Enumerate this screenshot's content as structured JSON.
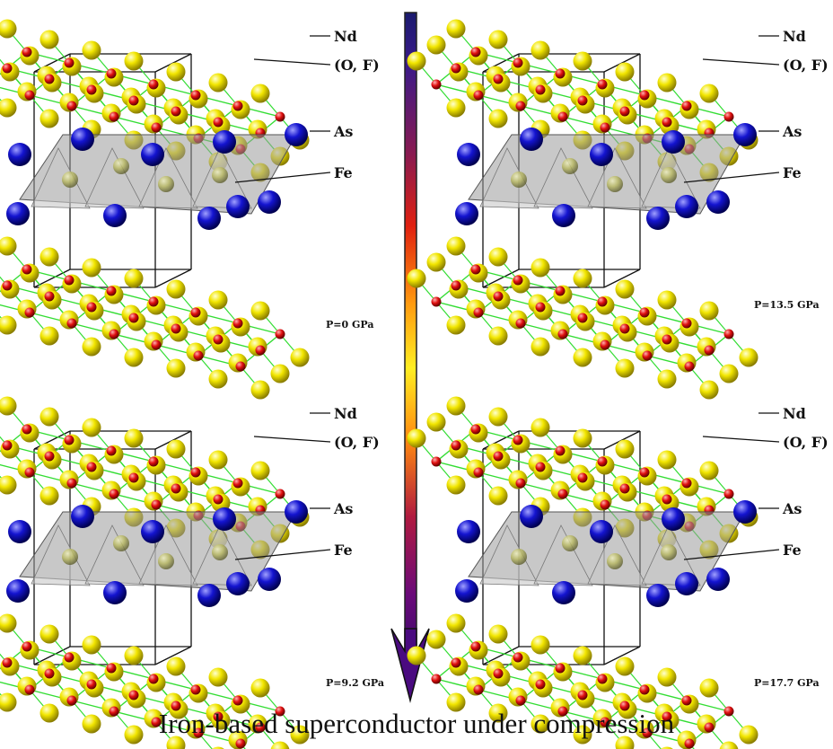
{
  "caption": "Iron-based superconductor under compression",
  "panels": [
    {
      "id": "p0",
      "pressure": "P=0 GPa"
    },
    {
      "id": "p135",
      "pressure": "P=13.5 GPa"
    },
    {
      "id": "p92",
      "pressure": "P=9.2 GPa"
    },
    {
      "id": "p177",
      "pressure": "P=17.7 GPa"
    }
  ],
  "labels": {
    "nd": "Nd",
    "of": "(O, F)",
    "as": "As",
    "fe": "Fe"
  },
  "colors": {
    "nd": "#f2e600",
    "of": "#e01010",
    "as": "#1010c8",
    "fe": "#b8b860",
    "bond": "#33dd33",
    "cell": "#111111",
    "arrow_top": "#1a1a6e",
    "arrow_mid_red": "#e02010",
    "arrow_mid_yellow": "#ffee22",
    "arrow_bottom": "#5a0a8a"
  },
  "arrow": {
    "direction": "down",
    "icon": "gradient-arrow-icon"
  }
}
